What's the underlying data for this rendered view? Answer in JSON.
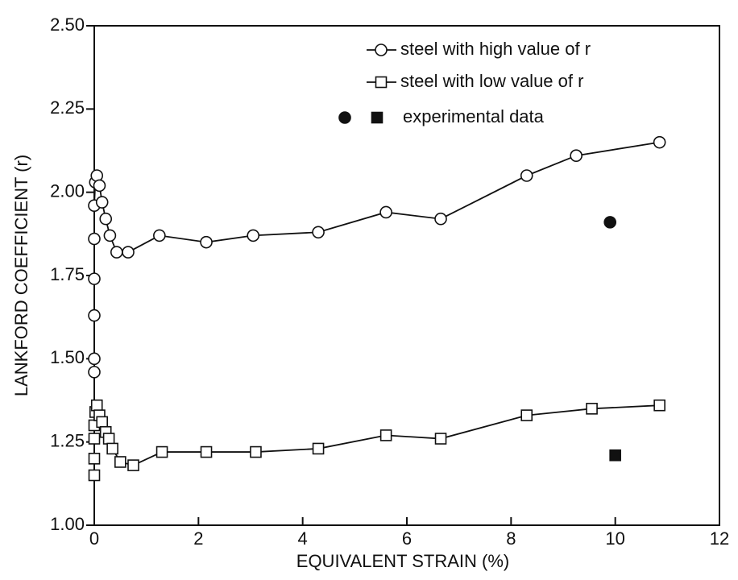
{
  "chart_data": {
    "type": "line",
    "xlabel": "EQUIVALENT STRAIN (%)",
    "ylabel": "LANKFORD COEFFICIENT (r)",
    "xlim": [
      0,
      12
    ],
    "xticks": [
      0,
      2,
      4,
      6,
      8,
      10,
      12
    ],
    "ylim": [
      1.0,
      2.5
    ],
    "yticks": [
      {
        "value": 1.0,
        "label": "1.00"
      },
      {
        "value": 1.25,
        "label": "1.25"
      },
      {
        "value": 1.5,
        "label": "1.50"
      },
      {
        "value": 1.75,
        "label": "1.75"
      },
      {
        "value": 2.0,
        "label": "2.00"
      },
      {
        "value": 2.25,
        "label": "2.25"
      },
      {
        "value": 2.5,
        "label": "2.50"
      }
    ],
    "series": [
      {
        "name": "steel with high value of r",
        "color": "#111111",
        "marker": "circle",
        "x": [
          0,
          0,
          0,
          0,
          0,
          0,
          0.02,
          0.05,
          0.1,
          0.15,
          0.22,
          0.3,
          0.43,
          0.65,
          1.25,
          2.15,
          3.05,
          4.3,
          5.6,
          6.65,
          8.3,
          9.25,
          10.85
        ],
        "values": [
          1.46,
          1.5,
          1.63,
          1.74,
          1.86,
          1.96,
          2.03,
          2.05,
          2.02,
          1.97,
          1.92,
          1.87,
          1.82,
          1.82,
          1.87,
          1.85,
          1.87,
          1.88,
          1.94,
          1.92,
          2.05,
          2.11,
          2.15
        ]
      },
      {
        "name": "steel with low value of r",
        "color": "#111111",
        "marker": "square",
        "x": [
          0,
          0,
          0,
          0,
          0.02,
          0.05,
          0.1,
          0.15,
          0.22,
          0.28,
          0.35,
          0.5,
          0.75,
          1.3,
          2.15,
          3.1,
          4.3,
          5.6,
          6.65,
          8.3,
          9.55,
          10.85
        ],
        "values": [
          1.15,
          1.2,
          1.26,
          1.3,
          1.34,
          1.36,
          1.33,
          1.31,
          1.28,
          1.26,
          1.23,
          1.19,
          1.18,
          1.22,
          1.22,
          1.22,
          1.23,
          1.27,
          1.26,
          1.33,
          1.35,
          1.36
        ]
      }
    ],
    "experimental": {
      "name": "experimental data",
      "x": [
        9.9,
        10.0
      ],
      "values": [
        1.91,
        1.21
      ]
    }
  }
}
